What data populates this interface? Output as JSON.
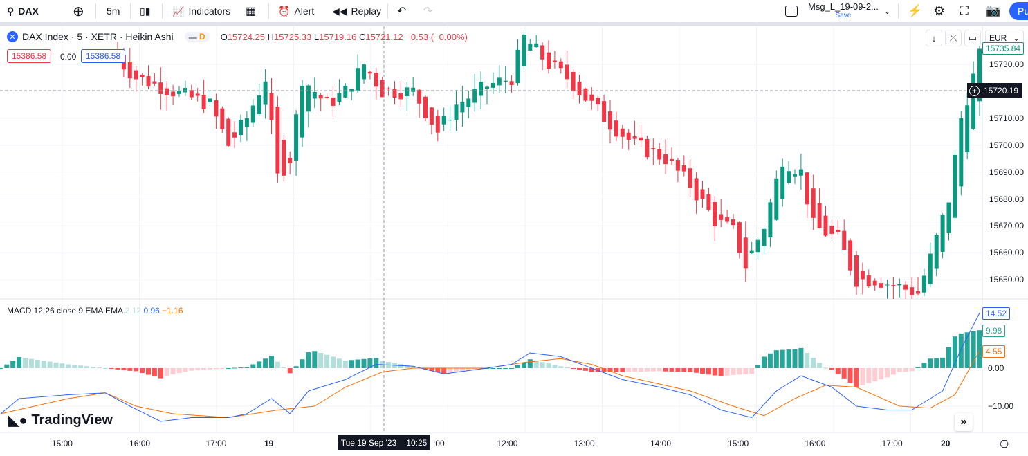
{
  "toolbar": {
    "symbol": "DAX",
    "interval": "5m",
    "indicators": "Indicators",
    "alert": "Alert",
    "replay": "Replay",
    "layout_name": "Msg_L_19-09-2...",
    "save": "Save",
    "publish": "Pu"
  },
  "legend": {
    "title": "DAX Index · 5 · XETR · Heikin Ashi",
    "badge": "D",
    "o_label": "O",
    "o": "15724.25",
    "h_label": "H",
    "h": "15725.33",
    "l_label": "L",
    "l": "15719.16",
    "c_label": "C",
    "c": "15721.12",
    "change": "−0.53 (−0.00%)",
    "bid": "15386.58",
    "spread": "0.00",
    "ask": "15386.58"
  },
  "currency": "EUR",
  "macd_legend": {
    "name": "MACD 12 26 close 9 EMA EMA",
    "hist": "2.12",
    "macd": "0.96",
    "signal": "−1.16"
  },
  "colors": {
    "up": "#089981",
    "down": "#f23645",
    "macd": "#2962ff",
    "signal": "#ff6d00",
    "hist_up": "#26a69a",
    "hist_up_light": "#b2dfdb",
    "hist_dn": "#ff5252",
    "hist_dn_light": "#ffcdd2"
  },
  "watermark": "TradingView",
  "crosshair": {
    "time": "Tue 19 Sep '23",
    "clock": "10:25",
    "price": "15720.19"
  },
  "chart_data": {
    "type": "candlestick",
    "price_ticks": [
      "15730.00",
      "15710.00",
      "15700.00",
      "15690.00",
      "15680.00",
      "15670.00",
      "15660.00",
      "15650.00"
    ],
    "price_tick_values": [
      15730,
      15710,
      15700,
      15690,
      15680,
      15670,
      15660,
      15650
    ],
    "last_price": "15735.84",
    "time_ticks": [
      {
        "label": "15:00",
        "bar": -9
      },
      {
        "label": "16:00",
        "bar": 3.6
      },
      {
        "label": "17:00",
        "bar": 16
      },
      {
        "label": "19",
        "bar": 25.5,
        "bold": true
      },
      {
        "label": ":00",
        "bar": 50
      },
      {
        "label": "12:00",
        "bar": 63.3
      },
      {
        "label": "13:00",
        "bar": 75.8
      },
      {
        "label": "14:00",
        "bar": 88.2
      },
      {
        "label": "15:00",
        "bar": 100.8
      },
      {
        "label": "16:00",
        "bar": 113.3
      },
      {
        "label": "17:00",
        "bar": 125.8
      },
      {
        "label": "20",
        "bar": 135.4,
        "bold": true
      }
    ],
    "price_keypoints": [
      [
        0,
        15732
      ],
      [
        3,
        15725
      ],
      [
        9,
        15720
      ],
      [
        15,
        15715
      ],
      [
        18,
        15700
      ],
      [
        21,
        15710
      ],
      [
        24,
        15725
      ],
      [
        26,
        15688
      ],
      [
        28,
        15695
      ],
      [
        30,
        15725
      ],
      [
        34,
        15715
      ],
      [
        37,
        15720
      ],
      [
        40,
        15730
      ],
      [
        43,
        15720
      ],
      [
        48,
        15720
      ],
      [
        52,
        15705
      ],
      [
        55,
        15715
      ],
      [
        60,
        15722
      ],
      [
        64,
        15725
      ],
      [
        66,
        15740
      ],
      [
        70,
        15730
      ],
      [
        73,
        15725
      ],
      [
        77,
        15715
      ],
      [
        80,
        15708
      ],
      [
        84,
        15700
      ],
      [
        89,
        15695
      ],
      [
        93,
        15685
      ],
      [
        97,
        15672
      ],
      [
        100,
        15668
      ],
      [
        102,
        15655
      ],
      [
        105,
        15670
      ],
      [
        108,
        15695
      ],
      [
        111,
        15690
      ],
      [
        113,
        15670
      ],
      [
        117,
        15665
      ],
      [
        120,
        15650
      ],
      [
        123,
        15650
      ],
      [
        126,
        15648
      ],
      [
        130,
        15645
      ],
      [
        132,
        15658
      ],
      [
        135,
        15680
      ],
      [
        137,
        15710
      ],
      [
        140,
        15733
      ]
    ],
    "macd_keypoints": [
      [
        -19,
        -12
      ],
      [
        -16,
        -8
      ],
      [
        -8,
        -7
      ],
      [
        -2,
        -6.5
      ],
      [
        2,
        -10
      ],
      [
        7,
        -14
      ],
      [
        12,
        -13
      ],
      [
        18,
        -13
      ],
      [
        21,
        -12
      ],
      [
        25,
        -8
      ],
      [
        28,
        -12
      ],
      [
        31,
        -6
      ],
      [
        37,
        -3
      ],
      [
        42,
        1
      ],
      [
        48,
        0.5
      ],
      [
        53,
        -1.5
      ],
      [
        60,
        0
      ],
      [
        64,
        1
      ],
      [
        67,
        4
      ],
      [
        72,
        3
      ],
      [
        77,
        0
      ],
      [
        82,
        -3
      ],
      [
        88,
        -5
      ],
      [
        93,
        -7
      ],
      [
        98,
        -11
      ],
      [
        103,
        -13
      ],
      [
        107,
        -6
      ],
      [
        111,
        -2
      ],
      [
        116,
        -5
      ],
      [
        120,
        -10
      ],
      [
        125,
        -11
      ],
      [
        129,
        -11
      ],
      [
        134,
        -6
      ],
      [
        137,
        5
      ],
      [
        140,
        14.52
      ]
    ],
    "signal_keypoints": [
      [
        -19,
        -12
      ],
      [
        -8,
        -8
      ],
      [
        -2,
        -6.5
      ],
      [
        3,
        -10
      ],
      [
        9,
        -12
      ],
      [
        18,
        -13
      ],
      [
        26,
        -11
      ],
      [
        32,
        -10
      ],
      [
        37,
        -5
      ],
      [
        43,
        -1
      ],
      [
        48,
        0
      ],
      [
        60,
        0
      ],
      [
        66,
        1.5
      ],
      [
        72,
        2.5
      ],
      [
        77,
        1
      ],
      [
        82,
        -2
      ],
      [
        93,
        -6
      ],
      [
        100,
        -10
      ],
      [
        105,
        -12.5
      ],
      [
        110,
        -8
      ],
      [
        115,
        -4.5
      ],
      [
        120,
        -5
      ],
      [
        127,
        -10
      ],
      [
        132,
        -10.5
      ],
      [
        136,
        -7
      ],
      [
        140,
        4.55
      ]
    ],
    "macd_ticks": [
      "0.00",
      "−10.00"
    ],
    "macd_tick_values": [
      0,
      -10
    ],
    "macd_last": "14.52",
    "hist_last": "9.98",
    "signal_last": "4.55"
  }
}
